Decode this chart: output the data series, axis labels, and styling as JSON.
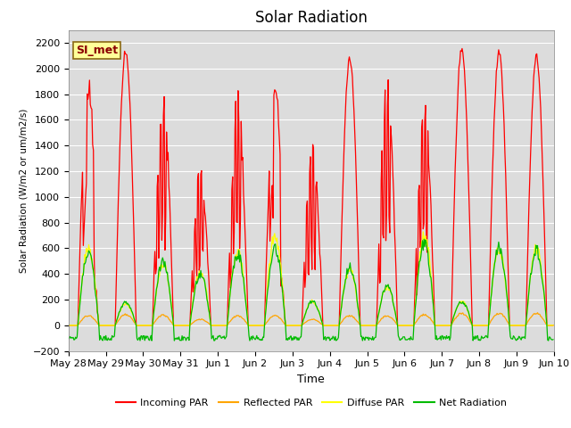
{
  "title": "Solar Radiation",
  "xlabel": "Time",
  "ylabel": "Solar Radiation (W/m2 or um/m2/s)",
  "ylim": [
    -200,
    2300
  ],
  "yticks": [
    -200,
    0,
    200,
    400,
    600,
    800,
    1000,
    1200,
    1400,
    1600,
    1800,
    2000,
    2200
  ],
  "annotation_text": "SI_met",
  "annotation_color": "#8B0000",
  "annotation_bg": "#FFFF99",
  "annotation_border": "#8B6914",
  "colors": {
    "incoming": "#FF0000",
    "reflected": "#FFA500",
    "diffuse": "#FFFF00",
    "net": "#00BB00"
  },
  "legend_labels": [
    "Incoming PAR",
    "Reflected PAR",
    "Diffuse PAR",
    "Net Radiation"
  ],
  "x_tick_labels": [
    "May 28",
    "May 29",
    "May 30",
    "May 31",
    "Jun 1",
    "Jun 2",
    "Jun 3",
    "Jun 4",
    "Jun 5",
    "Jun 6",
    "Jun 7",
    "Jun 8",
    "Jun 9",
    "Jun 10"
  ],
  "background_color": "#DCDCDC",
  "title_fontsize": 12,
  "linewidth": 0.9
}
